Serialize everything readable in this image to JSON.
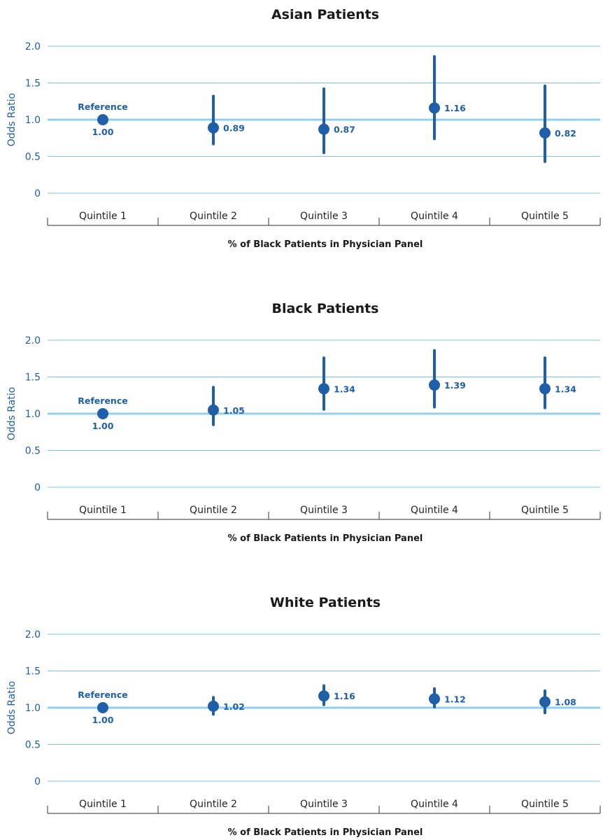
{
  "colors": {
    "marker": "#1f5fa9",
    "gridline": "#7cc4ea",
    "reference_line": "#8fd0f0",
    "axis_text": "#1f5fa9"
  },
  "chart_data": [
    {
      "type": "scatter",
      "title": "Asian Patients",
      "xlabel": "% of Black Patients in Physician Panel",
      "ylabel": "Odds Ratio",
      "ylim": [
        0,
        2.0
      ],
      "yticks": [
        "0",
        "0.5",
        "1.0",
        "1.5",
        "2.0"
      ],
      "reference_value": 1.0,
      "reference_label": "Reference",
      "grid": true,
      "categories": [
        "Quintile 1",
        "Quintile 2",
        "Quintile 3",
        "Quintile 4",
        "Quintile 5"
      ],
      "values": [
        1.0,
        0.89,
        0.87,
        1.16,
        0.82
      ],
      "value_labels": [
        "1.00",
        "0.89",
        "0.87",
        "1.16",
        "0.82"
      ],
      "ci_low": [
        null,
        0.67,
        0.55,
        0.74,
        0.43
      ],
      "ci_high": [
        null,
        1.32,
        1.42,
        1.86,
        1.46
      ]
    },
    {
      "type": "scatter",
      "title": "Black Patients",
      "xlabel": "% of Black Patients in Physician Panel",
      "ylabel": "Odds Ratio",
      "ylim": [
        0,
        2.0
      ],
      "yticks": [
        "0",
        "0.5",
        "1.0",
        "1.5",
        "2.0"
      ],
      "reference_value": 1.0,
      "reference_label": "Reference",
      "grid": true,
      "categories": [
        "Quintile 1",
        "Quintile 2",
        "Quintile 3",
        "Quintile 4",
        "Quintile 5"
      ],
      "values": [
        1.0,
        1.05,
        1.34,
        1.39,
        1.34
      ],
      "value_labels": [
        "1.00",
        "1.05",
        "1.34",
        "1.39",
        "1.34"
      ],
      "ci_low": [
        null,
        0.85,
        1.06,
        1.09,
        1.08
      ],
      "ci_high": [
        null,
        1.36,
        1.76,
        1.86,
        1.76
      ]
    },
    {
      "type": "scatter",
      "title": "White Patients",
      "xlabel": "% of Black Patients in Physician Panel",
      "ylabel": "Odds Ratio",
      "ylim": [
        0,
        2.0
      ],
      "yticks": [
        "0",
        "0.5",
        "1.0",
        "1.5",
        "2.0"
      ],
      "reference_value": 1.0,
      "reference_label": "Reference",
      "grid": true,
      "categories": [
        "Quintile 1",
        "Quintile 2",
        "Quintile 3",
        "Quintile 4",
        "Quintile 5"
      ],
      "values": [
        1.0,
        1.02,
        1.16,
        1.12,
        1.08
      ],
      "value_labels": [
        "1.00",
        "1.02",
        "1.16",
        "1.12",
        "1.08"
      ],
      "ci_low": [
        null,
        0.91,
        1.04,
        1.01,
        0.93
      ],
      "ci_high": [
        null,
        1.14,
        1.3,
        1.26,
        1.23
      ]
    }
  ]
}
